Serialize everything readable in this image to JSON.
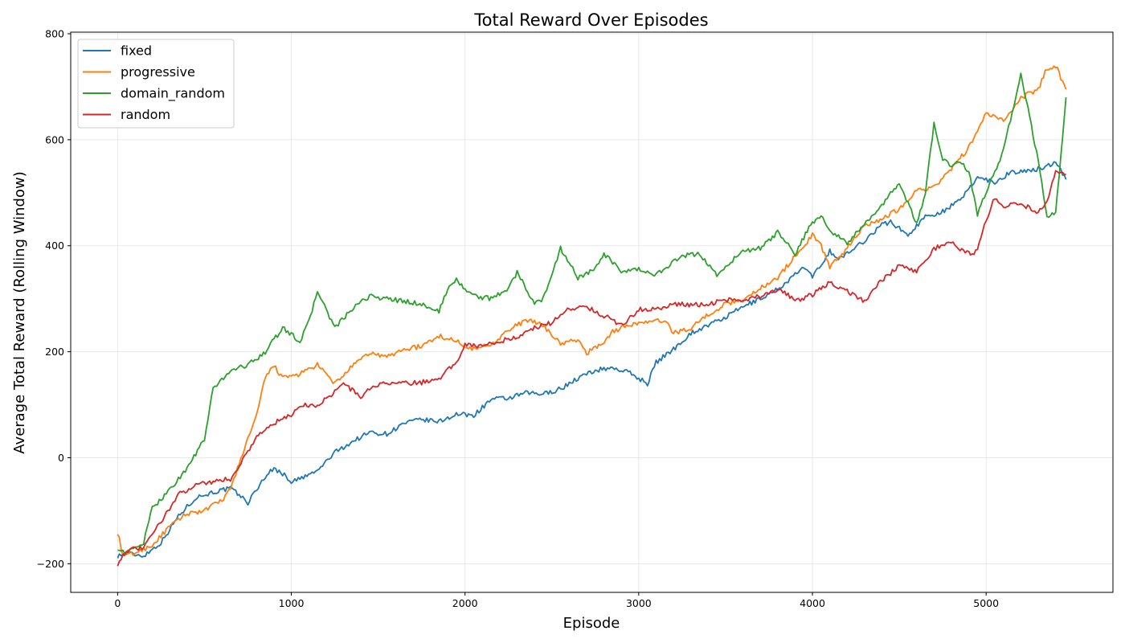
{
  "chart_data": {
    "type": "line",
    "title": "Total Reward Over Episodes",
    "xlabel": "Episode",
    "ylabel": "Average Total Reward (Rolling Window)",
    "xlim": [
      -270,
      5730
    ],
    "ylim": [
      -254,
      803
    ],
    "xticks": [
      0,
      1000,
      2000,
      3000,
      4000,
      5000
    ],
    "yticks": [
      -200,
      0,
      200,
      400,
      600,
      800
    ],
    "ytick_labels": [
      "−200",
      "0",
      "200",
      "400",
      "600",
      "800"
    ],
    "grid": true,
    "legend_position": "top-left",
    "series": [
      {
        "name": "fixed",
        "color": "#1f77b4",
        "points": [
          [
            0,
            -185
          ],
          [
            50,
            -180
          ],
          [
            150,
            -185
          ],
          [
            250,
            -160
          ],
          [
            350,
            -110
          ],
          [
            450,
            -75
          ],
          [
            550,
            -65
          ],
          [
            650,
            -58
          ],
          [
            700,
            -70
          ],
          [
            750,
            -85
          ],
          [
            850,
            -35
          ],
          [
            900,
            -20
          ],
          [
            950,
            -30
          ],
          [
            1000,
            -45
          ],
          [
            1050,
            -40
          ],
          [
            1150,
            -25
          ],
          [
            1250,
            10
          ],
          [
            1350,
            30
          ],
          [
            1450,
            48
          ],
          [
            1550,
            45
          ],
          [
            1650,
            65
          ],
          [
            1750,
            72
          ],
          [
            1850,
            68
          ],
          [
            1950,
            82
          ],
          [
            2050,
            80
          ],
          [
            2100,
            95
          ],
          [
            2150,
            110
          ],
          [
            2250,
            112
          ],
          [
            2350,
            122
          ],
          [
            2450,
            120
          ],
          [
            2550,
            130
          ],
          [
            2650,
            150
          ],
          [
            2750,
            165
          ],
          [
            2850,
            170
          ],
          [
            2950,
            160
          ],
          [
            3050,
            140
          ],
          [
            3100,
            180
          ],
          [
            3200,
            205
          ],
          [
            3300,
            235
          ],
          [
            3400,
            250
          ],
          [
            3500,
            265
          ],
          [
            3600,
            285
          ],
          [
            3700,
            300
          ],
          [
            3800,
            318
          ],
          [
            3900,
            345
          ],
          [
            3950,
            360
          ],
          [
            4000,
            340
          ],
          [
            4050,
            365
          ],
          [
            4100,
            390
          ],
          [
            4150,
            375
          ],
          [
            4200,
            385
          ],
          [
            4300,
            410
          ],
          [
            4400,
            440
          ],
          [
            4450,
            445
          ],
          [
            4550,
            420
          ],
          [
            4650,
            455
          ],
          [
            4750,
            465
          ],
          [
            4850,
            485
          ],
          [
            4950,
            530
          ],
          [
            5050,
            520
          ],
          [
            5150,
            540
          ],
          [
            5250,
            540
          ],
          [
            5350,
            550
          ],
          [
            5400,
            560
          ],
          [
            5460,
            525
          ]
        ]
      },
      {
        "name": "progressive",
        "color": "#ff7f0e",
        "points": [
          [
            0,
            -140
          ],
          [
            30,
            -185
          ],
          [
            100,
            -180
          ],
          [
            200,
            -165
          ],
          [
            300,
            -130
          ],
          [
            400,
            -105
          ],
          [
            500,
            -100
          ],
          [
            600,
            -80
          ],
          [
            650,
            -60
          ],
          [
            700,
            -10
          ],
          [
            800,
            80
          ],
          [
            850,
            150
          ],
          [
            900,
            175
          ],
          [
            950,
            150
          ],
          [
            1050,
            158
          ],
          [
            1150,
            175
          ],
          [
            1250,
            140
          ],
          [
            1350,
            172
          ],
          [
            1450,
            198
          ],
          [
            1550,
            190
          ],
          [
            1650,
            205
          ],
          [
            1750,
            210
          ],
          [
            1850,
            230
          ],
          [
            1950,
            220
          ],
          [
            2050,
            205
          ],
          [
            2150,
            215
          ],
          [
            2250,
            240
          ],
          [
            2350,
            260
          ],
          [
            2450,
            250
          ],
          [
            2550,
            215
          ],
          [
            2650,
            222
          ],
          [
            2700,
            198
          ],
          [
            2800,
            218
          ],
          [
            2850,
            238
          ],
          [
            2950,
            252
          ],
          [
            3050,
            255
          ],
          [
            3150,
            260
          ],
          [
            3200,
            235
          ],
          [
            3300,
            245
          ],
          [
            3400,
            270
          ],
          [
            3500,
            290
          ],
          [
            3600,
            298
          ],
          [
            3700,
            320
          ],
          [
            3800,
            340
          ],
          [
            3900,
            380
          ],
          [
            4000,
            420
          ],
          [
            4050,
            400
          ],
          [
            4100,
            360
          ],
          [
            4200,
            395
          ],
          [
            4300,
            440
          ],
          [
            4400,
            450
          ],
          [
            4500,
            470
          ],
          [
            4600,
            505
          ],
          [
            4700,
            510
          ],
          [
            4800,
            545
          ],
          [
            4900,
            585
          ],
          [
            5000,
            650
          ],
          [
            5100,
            635
          ],
          [
            5200,
            680
          ],
          [
            5300,
            695
          ],
          [
            5350,
            735
          ],
          [
            5400,
            740
          ],
          [
            5460,
            695
          ]
        ]
      },
      {
        "name": "domain_random",
        "color": "#2ca02c",
        "points": [
          [
            0,
            -170
          ],
          [
            50,
            -180
          ],
          [
            150,
            -160
          ],
          [
            200,
            -95
          ],
          [
            300,
            -60
          ],
          [
            400,
            -20
          ],
          [
            500,
            35
          ],
          [
            550,
            130
          ],
          [
            650,
            165
          ],
          [
            750,
            175
          ],
          [
            850,
            200
          ],
          [
            950,
            245
          ],
          [
            1050,
            220
          ],
          [
            1100,
            255
          ],
          [
            1150,
            315
          ],
          [
            1250,
            245
          ],
          [
            1350,
            280
          ],
          [
            1450,
            305
          ],
          [
            1550,
            300
          ],
          [
            1650,
            295
          ],
          [
            1750,
            290
          ],
          [
            1850,
            275
          ],
          [
            1900,
            320
          ],
          [
            1950,
            335
          ],
          [
            2050,
            305
          ],
          [
            2150,
            300
          ],
          [
            2250,
            320
          ],
          [
            2300,
            350
          ],
          [
            2400,
            290
          ],
          [
            2450,
            300
          ],
          [
            2550,
            395
          ],
          [
            2650,
            340
          ],
          [
            2750,
            355
          ],
          [
            2800,
            385
          ],
          [
            2900,
            350
          ],
          [
            3000,
            355
          ],
          [
            3100,
            345
          ],
          [
            3150,
            358
          ],
          [
            3250,
            380
          ],
          [
            3350,
            385
          ],
          [
            3450,
            345
          ],
          [
            3550,
            375
          ],
          [
            3600,
            390
          ],
          [
            3700,
            395
          ],
          [
            3800,
            425
          ],
          [
            3900,
            385
          ],
          [
            4000,
            445
          ],
          [
            4050,
            455
          ],
          [
            4100,
            430
          ],
          [
            4200,
            405
          ],
          [
            4300,
            440
          ],
          [
            4400,
            475
          ],
          [
            4500,
            520
          ],
          [
            4600,
            440
          ],
          [
            4650,
            500
          ],
          [
            4700,
            630
          ],
          [
            4750,
            565
          ],
          [
            4800,
            550
          ],
          [
            4850,
            560
          ],
          [
            4900,
            540
          ],
          [
            4950,
            460
          ],
          [
            5000,
            500
          ],
          [
            5100,
            580
          ],
          [
            5200,
            725
          ],
          [
            5300,
            560
          ],
          [
            5350,
            455
          ],
          [
            5400,
            460
          ],
          [
            5460,
            680
          ]
        ]
      },
      {
        "name": "random",
        "color": "#d62728",
        "points": [
          [
            0,
            -200
          ],
          [
            50,
            -175
          ],
          [
            150,
            -170
          ],
          [
            250,
            -120
          ],
          [
            350,
            -70
          ],
          [
            450,
            -50
          ],
          [
            550,
            -45
          ],
          [
            650,
            -40
          ],
          [
            700,
            -15
          ],
          [
            800,
            40
          ],
          [
            900,
            65
          ],
          [
            1000,
            80
          ],
          [
            1050,
            100
          ],
          [
            1150,
            98
          ],
          [
            1250,
            125
          ],
          [
            1300,
            140
          ],
          [
            1400,
            115
          ],
          [
            1450,
            130
          ],
          [
            1550,
            142
          ],
          [
            1650,
            140
          ],
          [
            1750,
            142
          ],
          [
            1850,
            150
          ],
          [
            1950,
            180
          ],
          [
            2000,
            215
          ],
          [
            2100,
            210
          ],
          [
            2200,
            220
          ],
          [
            2300,
            228
          ],
          [
            2400,
            245
          ],
          [
            2500,
            255
          ],
          [
            2600,
            282
          ],
          [
            2700,
            285
          ],
          [
            2800,
            268
          ],
          [
            2900,
            250
          ],
          [
            3000,
            280
          ],
          [
            3100,
            280
          ],
          [
            3200,
            290
          ],
          [
            3300,
            288
          ],
          [
            3400,
            290
          ],
          [
            3500,
            298
          ],
          [
            3600,
            298
          ],
          [
            3700,
            305
          ],
          [
            3800,
            315
          ],
          [
            3850,
            310
          ],
          [
            3900,
            295
          ],
          [
            4000,
            308
          ],
          [
            4100,
            330
          ],
          [
            4200,
            315
          ],
          [
            4300,
            295
          ],
          [
            4400,
            335
          ],
          [
            4500,
            362
          ],
          [
            4600,
            350
          ],
          [
            4700,
            395
          ],
          [
            4800,
            405
          ],
          [
            4900,
            385
          ],
          [
            4950,
            390
          ],
          [
            5000,
            450
          ],
          [
            5050,
            490
          ],
          [
            5100,
            475
          ],
          [
            5200,
            480
          ],
          [
            5300,
            462
          ],
          [
            5350,
            480
          ],
          [
            5400,
            540
          ],
          [
            5460,
            535
          ]
        ]
      }
    ]
  }
}
